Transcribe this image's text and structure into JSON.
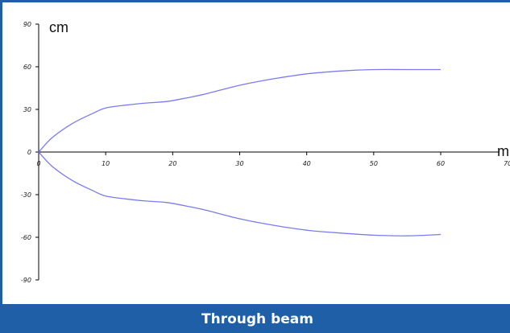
{
  "caption": "Through beam",
  "colors": {
    "frame": "#1f5fa8",
    "caption_bg": "#1f5fa8",
    "series": "#7b7bf0"
  },
  "chart_data": {
    "type": "line",
    "title": "",
    "xlabel": "m",
    "ylabel": "cm",
    "xlim": [
      0,
      70
    ],
    "ylim": [
      -90,
      90
    ],
    "x_ticks": [
      0,
      10,
      20,
      30,
      40,
      50,
      60,
      70
    ],
    "y_ticks": [
      90,
      60,
      30,
      0,
      -30,
      -60,
      -90
    ],
    "x_tick_labels": [
      "0",
      "10",
      "20",
      "30",
      "40",
      "50",
      "60",
      "70"
    ],
    "y_tick_labels": [
      "90",
      "60",
      "30",
      "0",
      "-30",
      "-60",
      "-90"
    ],
    "grid": false,
    "legend": "none",
    "series": [
      {
        "x": [
          0,
          2,
          5,
          8,
          10,
          13,
          16,
          19,
          22,
          25,
          30,
          35,
          40,
          45,
          50,
          55,
          60
        ],
        "y": [
          0,
          10,
          20,
          27,
          31,
          33,
          34.5,
          35.5,
          38,
          41,
          47,
          51.5,
          55,
          57,
          58,
          58,
          58
        ]
      },
      {
        "x": [
          0,
          2,
          5,
          8,
          10,
          13,
          16,
          19,
          22,
          25,
          30,
          35,
          40,
          45,
          50,
          55,
          60
        ],
        "y": [
          0,
          -10,
          -20,
          -27,
          -31,
          -33,
          -34.5,
          -35.5,
          -38,
          -41,
          -47,
          -51.5,
          -55,
          -57,
          -58.5,
          -59,
          -58
        ]
      }
    ]
  }
}
